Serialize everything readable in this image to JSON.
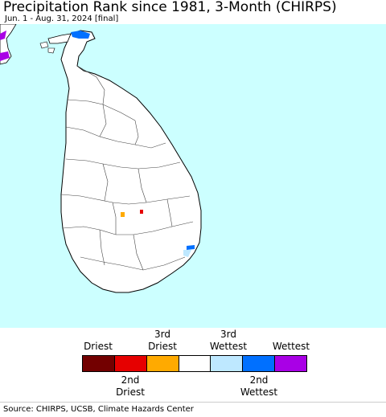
{
  "header": {
    "title": "Precipitation Rank since 1981, 3-Month (CHIRPS)",
    "subtitle": "Jun. 1 - Aug. 31, 2024 [final]"
  },
  "map": {
    "ocean_color": "#ccffff",
    "land_color": "#ffffff",
    "border_color": "#000000"
  },
  "legend": {
    "top_labels": [
      {
        "lines": [
          "Driest"
        ]
      },
      {
        "lines": [
          "3rd",
          "Driest"
        ]
      },
      {
        "lines": [
          "3rd",
          "Wettest"
        ]
      },
      {
        "lines": [
          "Wettest"
        ]
      }
    ],
    "bottom_labels": [
      {
        "lines": [
          "2nd",
          "Driest"
        ]
      },
      {
        "lines": [
          "2nd",
          "Wettest"
        ]
      }
    ],
    "colors": [
      "#730000",
      "#e60000",
      "#ffaa00",
      "#ffffff",
      "#bee8ff",
      "#0070ff",
      "#a900e6"
    ]
  },
  "footer": {
    "source": "Source: CHIRPS, UCSB, Climate Hazards Center"
  }
}
